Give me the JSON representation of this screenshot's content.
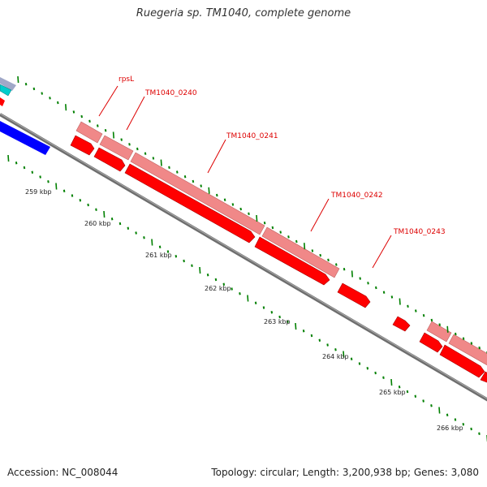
{
  "title": "Ruegeria sp. TM1040, complete genome",
  "footer": {
    "accession": "Accession: NC_008044",
    "summary": "Topology: circular; Length: 3,200,938 bp; Genes: 3,080"
  },
  "scale": {
    "unit": "kbp",
    "labels": [
      "259 kbp",
      "260 kbp",
      "261 kbp",
      "262 kbp",
      "263 kbp",
      "264 kbp",
      "265 kbp",
      "266 kbp"
    ]
  },
  "genes": [
    {
      "name": "rpsL"
    },
    {
      "name": "TM1040_0240"
    },
    {
      "name": "TM1040_0241"
    },
    {
      "name": "TM1040_0242"
    },
    {
      "name": "TM1040_0243"
    }
  ],
  "colors": {
    "gene_cds": "#ff0000",
    "gene_outline": "#f08080",
    "other_strand": "#0000ff",
    "teal": "#00cccc",
    "backbone": "#808080",
    "ticks": "#008000"
  }
}
